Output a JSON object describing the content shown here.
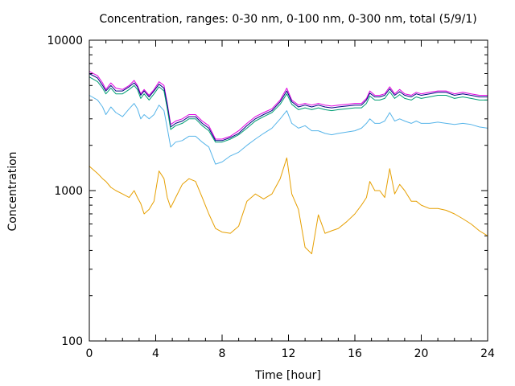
{
  "chart_data": {
    "type": "line",
    "title": "Concentration, ranges: 0-30 nm, 0-100 nm, 0-300 nm, total (5/9/1)",
    "xlabel": "Time [hour]",
    "ylabel": "Concentration",
    "xlim": [
      0,
      24
    ],
    "ylim": [
      100,
      10000
    ],
    "yscale": "log",
    "xticks": [
      0,
      4,
      8,
      12,
      16,
      20,
      24
    ],
    "xtick_labels": [
      "0",
      "4",
      "8",
      "12",
      "16",
      "20",
      "24"
    ],
    "yticks": [
      100,
      1000,
      10000
    ],
    "ytick_labels": [
      "100",
      "1000",
      "10000"
    ],
    "grid": false,
    "legend": "none",
    "x": [
      0,
      0.5,
      0.8,
      1.0,
      1.3,
      1.6,
      2.0,
      2.4,
      2.7,
      2.9,
      3.1,
      3.3,
      3.6,
      3.9,
      4.2,
      4.5,
      4.7,
      4.9,
      5.2,
      5.6,
      6.0,
      6.4,
      6.8,
      7.2,
      7.6,
      8.0,
      8.5,
      9.0,
      9.5,
      10.0,
      10.5,
      11.0,
      11.5,
      11.9,
      12.2,
      12.6,
      13.0,
      13.4,
      13.8,
      14.2,
      14.6,
      15.0,
      15.5,
      16.0,
      16.4,
      16.7,
      16.9,
      17.2,
      17.5,
      17.8,
      18.1,
      18.4,
      18.7,
      19.0,
      19.4,
      19.7,
      20.0,
      20.5,
      21.0,
      21.5,
      22.0,
      22.5,
      23.0,
      23.5,
      24.0
    ],
    "series": [
      {
        "color": "#e000e0",
        "values": [
          6200,
          5800,
          5200,
          4700,
          5200,
          4800,
          4700,
          5000,
          5400,
          5000,
          4400,
          4700,
          4300,
          4700,
          5300,
          5000,
          3800,
          2750,
          2900,
          3000,
          3200,
          3200,
          2900,
          2700,
          2200,
          2200,
          2300,
          2500,
          2800,
          3100,
          3300,
          3500,
          4000,
          4800,
          4000,
          3700,
          3800,
          3700,
          3800,
          3700,
          3650,
          3700,
          3750,
          3800,
          3800,
          4100,
          4600,
          4300,
          4300,
          4400,
          4900,
          4400,
          4700,
          4400,
          4300,
          4500,
          4400,
          4500,
          4600,
          4600,
          4400,
          4500,
          4400,
          4300,
          4300
        ]
      },
      {
        "color": "#000080",
        "values": [
          6000,
          5600,
          5000,
          4600,
          5000,
          4600,
          4600,
          4900,
          5200,
          4900,
          4300,
          4600,
          4200,
          4600,
          5100,
          4800,
          3700,
          2650,
          2800,
          2900,
          3100,
          3100,
          2800,
          2600,
          2150,
          2150,
          2250,
          2400,
          2700,
          3000,
          3200,
          3400,
          3900,
          4600,
          3900,
          3600,
          3700,
          3600,
          3700,
          3600,
          3550,
          3600,
          3650,
          3700,
          3700,
          4000,
          4450,
          4200,
          4200,
          4300,
          4750,
          4300,
          4550,
          4300,
          4200,
          4400,
          4300,
          4400,
          4500,
          4500,
          4300,
          4400,
          4300,
          4200,
          4200
        ]
      },
      {
        "color": "#009e73",
        "values": [
          5700,
          5300,
          4800,
          4400,
          4800,
          4400,
          4400,
          4700,
          5000,
          4700,
          4100,
          4400,
          4000,
          4400,
          4900,
          4600,
          3500,
          2550,
          2700,
          2800,
          3000,
          3000,
          2700,
          2500,
          2100,
          2100,
          2200,
          2350,
          2600,
          2900,
          3100,
          3300,
          3750,
          4400,
          3750,
          3450,
          3550,
          3450,
          3550,
          3450,
          3400,
          3450,
          3500,
          3550,
          3550,
          3800,
          4250,
          4000,
          4000,
          4100,
          4550,
          4100,
          4350,
          4100,
          4000,
          4200,
          4100,
          4200,
          4300,
          4300,
          4100,
          4200,
          4100,
          4000,
          4000
        ]
      },
      {
        "color": "#56b4e9",
        "values": [
          4300,
          4000,
          3600,
          3200,
          3600,
          3300,
          3100,
          3500,
          3800,
          3500,
          3000,
          3200,
          3000,
          3200,
          3700,
          3400,
          2600,
          1950,
          2100,
          2150,
          2300,
          2300,
          2100,
          1950,
          1500,
          1550,
          1700,
          1800,
          2000,
          2200,
          2400,
          2600,
          3000,
          3400,
          2800,
          2600,
          2700,
          2500,
          2500,
          2400,
          2350,
          2400,
          2450,
          2500,
          2600,
          2800,
          3000,
          2800,
          2800,
          2900,
          3300,
          2900,
          3000,
          2900,
          2800,
          2900,
          2800,
          2800,
          2850,
          2800,
          2750,
          2800,
          2750,
          2650,
          2600
        ]
      },
      {
        "color": "#e69f00",
        "values": [
          1450,
          1300,
          1200,
          1150,
          1050,
          1000,
          950,
          900,
          1000,
          900,
          820,
          700,
          750,
          850,
          1350,
          1200,
          900,
          770,
          900,
          1100,
          1200,
          1150,
          900,
          700,
          560,
          530,
          520,
          580,
          850,
          950,
          880,
          950,
          1200,
          1650,
          950,
          750,
          420,
          380,
          690,
          520,
          540,
          560,
          620,
          700,
          800,
          900,
          1150,
          1000,
          1000,
          900,
          1400,
          950,
          1100,
          1000,
          850,
          850,
          800,
          760,
          760,
          740,
          700,
          650,
          600,
          540,
          500
        ]
      }
    ]
  }
}
